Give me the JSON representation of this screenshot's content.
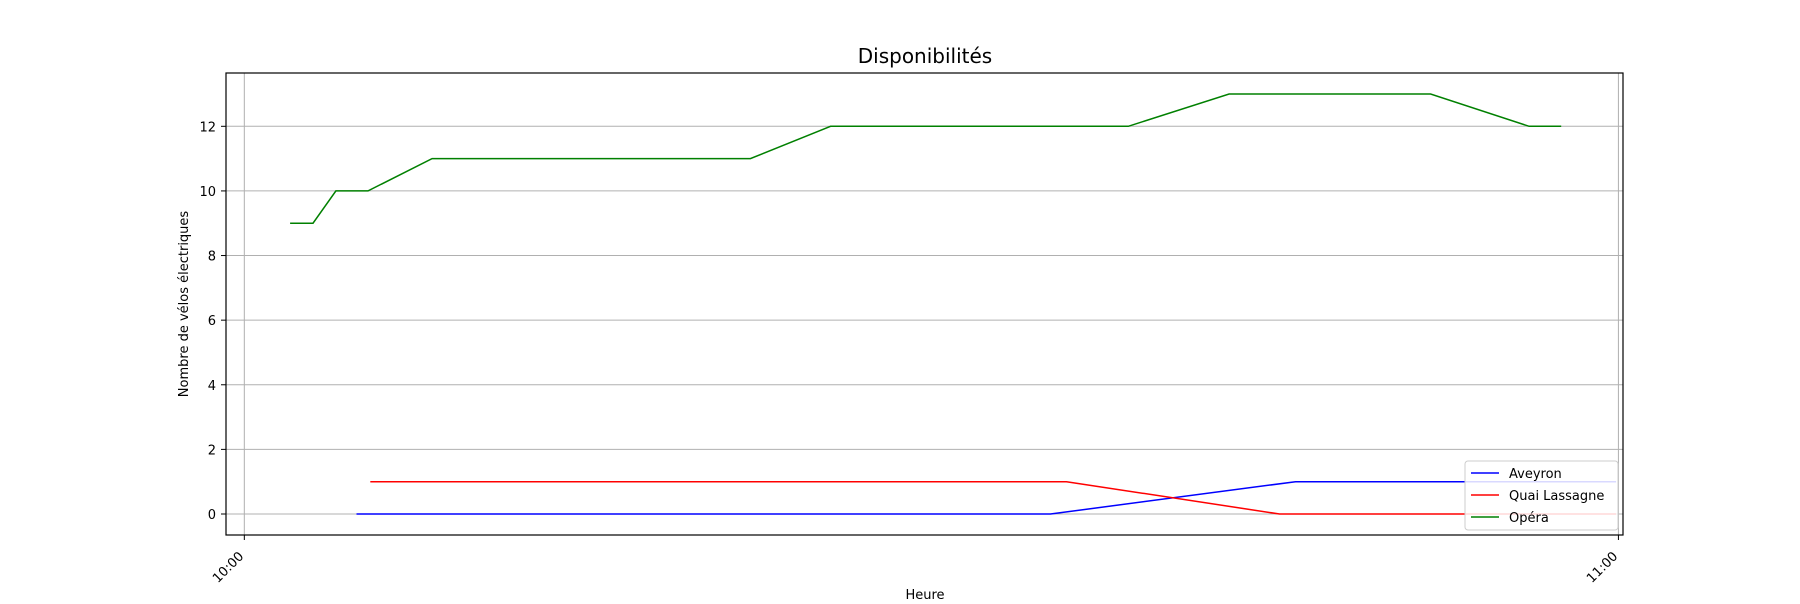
{
  "chart_data": {
    "type": "line",
    "title": "Disponibilités",
    "xlabel": "Heure",
    "ylabel": "Nombre de vélos électriques",
    "x_unit": "minutes",
    "x_range": [
      -0.8,
      60.2
    ],
    "ylim": [
      -0.65,
      13.65
    ],
    "x_ticks": [
      {
        "value": 0,
        "label": "10:00"
      },
      {
        "value": 60,
        "label": "11:00"
      }
    ],
    "y_ticks": [
      {
        "value": 0,
        "label": "0"
      },
      {
        "value": 2,
        "label": "2"
      },
      {
        "value": 4,
        "label": "4"
      },
      {
        "value": 6,
        "label": "6"
      },
      {
        "value": 8,
        "label": "8"
      },
      {
        "value": 10,
        "label": "10"
      },
      {
        "value": 12,
        "label": "12"
      }
    ],
    "grid": {
      "y": true,
      "x": "ticks"
    },
    "legend_position": "lower-right",
    "series": [
      {
        "name": "Aveyron",
        "color": "#0000ff",
        "points": [
          [
            4.9,
            0
          ],
          [
            35.2,
            0
          ],
          [
            45.9,
            1
          ],
          [
            59.9,
            1
          ]
        ]
      },
      {
        "name": "Quai Lassagne",
        "color": "#ff0000",
        "points": [
          [
            5.5,
            1
          ],
          [
            35.9,
            1
          ],
          [
            45.2,
            0
          ],
          [
            59.9,
            0
          ]
        ]
      },
      {
        "name": "Opéra",
        "color": "#008000",
        "points": [
          [
            2.0,
            9
          ],
          [
            3.0,
            9
          ],
          [
            4.0,
            10
          ],
          [
            5.4,
            10
          ],
          [
            8.2,
            11
          ],
          [
            22.1,
            11
          ],
          [
            25.6,
            12
          ],
          [
            38.6,
            12
          ],
          [
            43.0,
            13
          ],
          [
            51.8,
            13
          ],
          [
            56.1,
            12
          ],
          [
            57.5,
            12
          ]
        ]
      }
    ]
  }
}
